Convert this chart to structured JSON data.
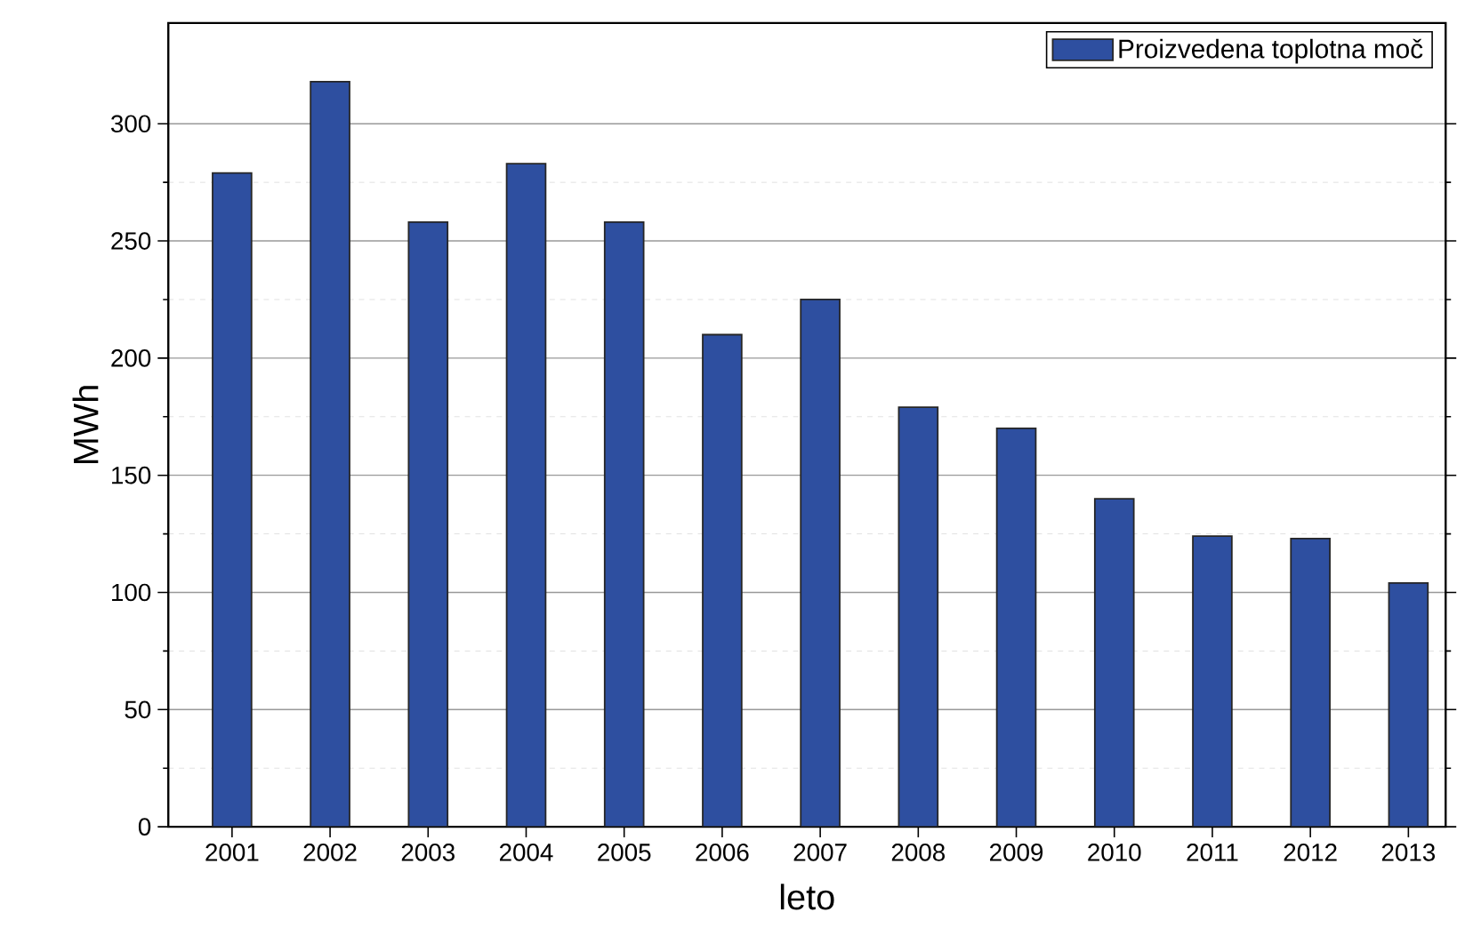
{
  "chart_data": {
    "type": "bar",
    "xlabel": "leto",
    "ylabel": "MWh",
    "categories": [
      "2001",
      "2002",
      "2003",
      "2004",
      "2005",
      "2006",
      "2007",
      "2008",
      "2009",
      "2010",
      "2011",
      "2012",
      "2013"
    ],
    "series": [
      {
        "name": "Proizvedena toplotna moč",
        "color": "#2e4fa0",
        "values": [
          279,
          318,
          258,
          283,
          258,
          210,
          225,
          179,
          170,
          140,
          124,
          123,
          104
        ]
      }
    ],
    "ylim": [
      0,
      343
    ],
    "yticks": [
      0,
      50,
      100,
      150,
      200,
      250,
      300
    ],
    "grid": "y",
    "legend": "top right"
  }
}
